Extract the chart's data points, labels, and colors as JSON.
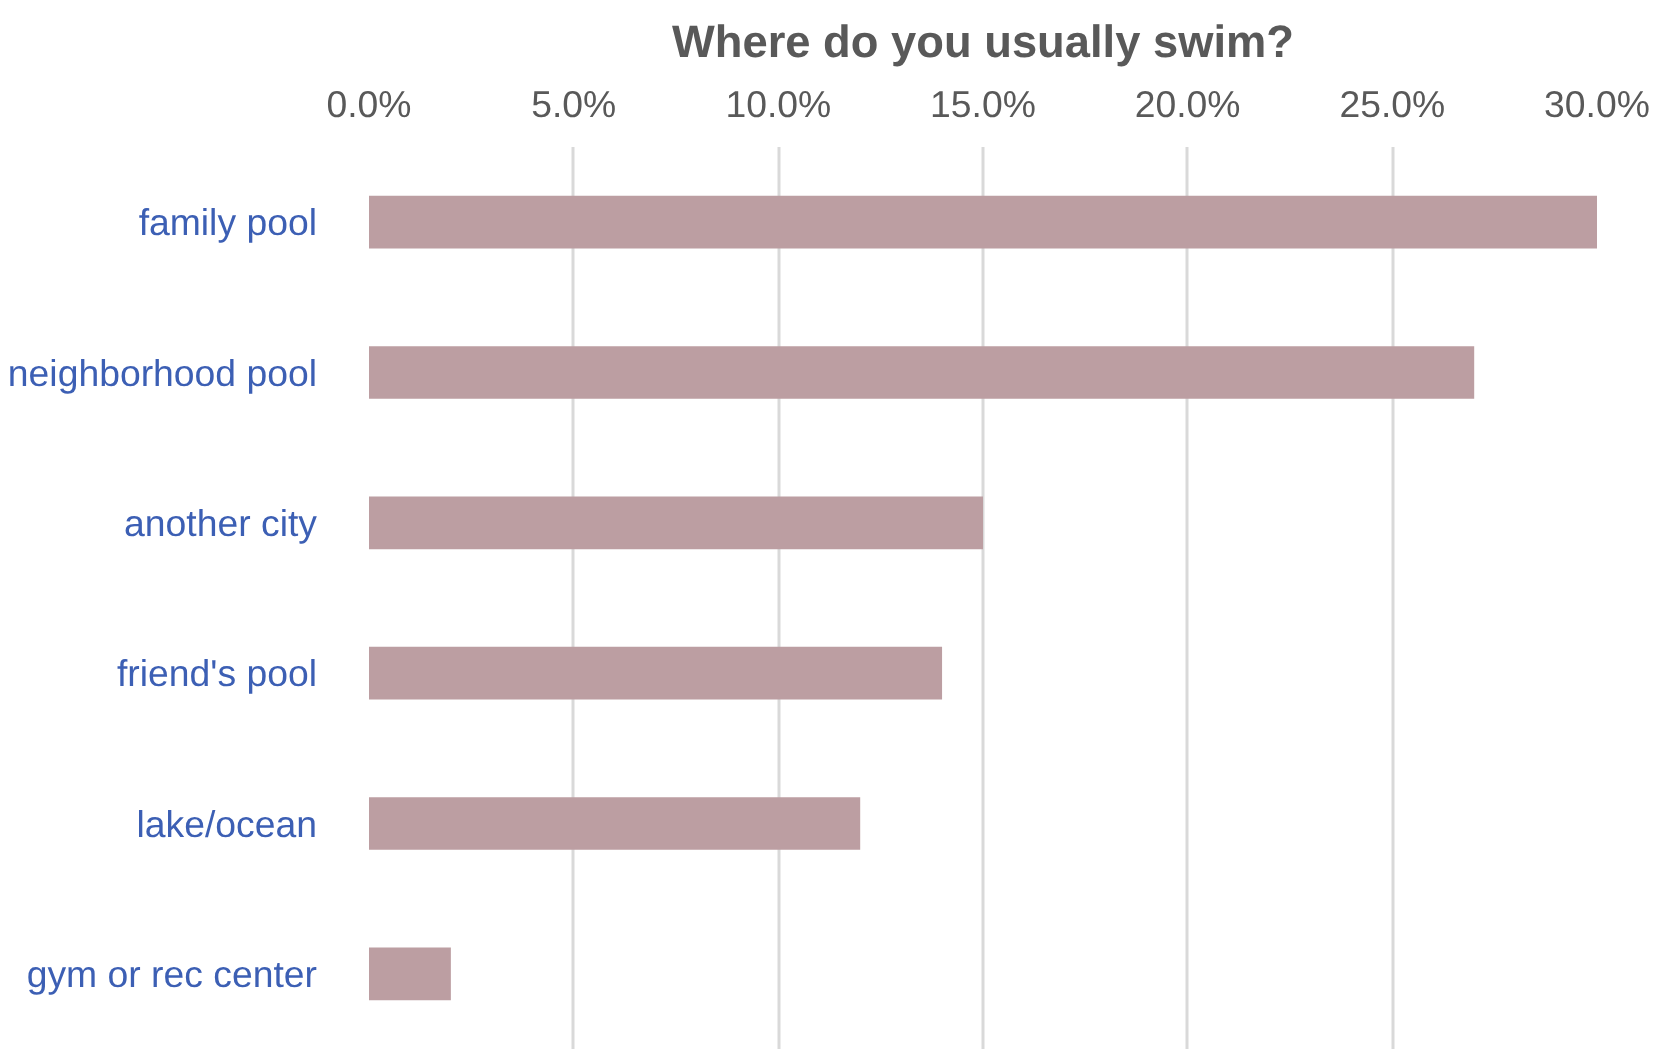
{
  "chart_data": {
    "type": "bar",
    "orientation": "horizontal",
    "title": "Where do you usually swim?",
    "categories": [
      "family pool",
      "neighborhood pool",
      "another city",
      "friend's pool",
      "lake/ocean",
      "gym or rec center"
    ],
    "values": [
      30,
      27,
      15,
      14,
      12,
      2
    ],
    "color": "#bc9ea2",
    "xlim": [
      0,
      30
    ],
    "xticks": [
      {
        "value": 0,
        "label": "0.0%"
      },
      {
        "value": 5,
        "label": "5.0%"
      },
      {
        "value": 10,
        "label": "10.0%"
      },
      {
        "value": 15,
        "label": "15.0%"
      },
      {
        "value": 20,
        "label": "20.0%"
      },
      {
        "value": 25,
        "label": "25.0%"
      },
      {
        "value": 30,
        "label": "30.0%"
      }
    ],
    "grid": "x"
  }
}
